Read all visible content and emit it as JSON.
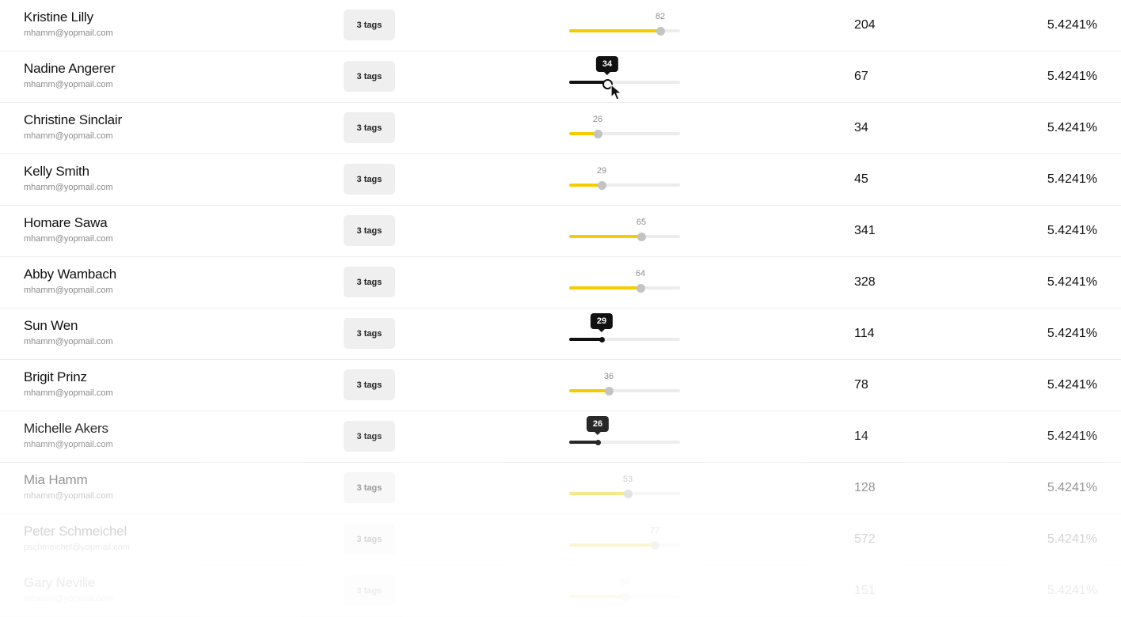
{
  "rows": [
    {
      "name": "Kristine Lilly",
      "email": "mhamm@yopmail.com",
      "tags": "3 tags",
      "level": 82,
      "count": "204",
      "percent": "5.4241%",
      "state": "normal",
      "opacity": 1
    },
    {
      "name": "Nadine Angerer",
      "email": "mhamm@yopmail.com",
      "tags": "3 tags",
      "level": 34,
      "count": "67",
      "percent": "5.4241%",
      "state": "active",
      "opacity": 1
    },
    {
      "name": "Christine Sinclair",
      "email": "mhamm@yopmail.com",
      "tags": "3 tags",
      "level": 26,
      "count": "34",
      "percent": "5.4241%",
      "state": "normal",
      "opacity": 1
    },
    {
      "name": "Kelly Smith",
      "email": "mhamm@yopmail.com",
      "tags": "3 tags",
      "level": 29,
      "count": "45",
      "percent": "5.4241%",
      "state": "normal",
      "opacity": 1
    },
    {
      "name": "Homare Sawa",
      "email": "mhamm@yopmail.com",
      "tags": "3 tags",
      "level": 65,
      "count": "341",
      "percent": "5.4241%",
      "state": "normal",
      "opacity": 1
    },
    {
      "name": "Abby Wambach",
      "email": "mhamm@yopmail.com",
      "tags": "3 tags",
      "level": 64,
      "count": "328",
      "percent": "5.4241%",
      "state": "normal",
      "opacity": 1
    },
    {
      "name": "Sun Wen",
      "email": "mhamm@yopmail.com",
      "tags": "3 tags",
      "level": 29,
      "count": "114",
      "percent": "5.4241%",
      "state": "dark",
      "opacity": 1
    },
    {
      "name": "Brigit Prinz",
      "email": "mhamm@yopmail.com",
      "tags": "3 tags",
      "level": 36,
      "count": "78",
      "percent": "5.4241%",
      "state": "normal",
      "opacity": 1
    },
    {
      "name": "Michelle Akers",
      "email": "mhamm@yopmail.com",
      "tags": "3 tags",
      "level": 26,
      "count": "14",
      "percent": "5.4241%",
      "state": "dark",
      "opacity": 0.9
    },
    {
      "name": "Mia Hamm",
      "email": "mhamm@yopmail.com",
      "tags": "3 tags",
      "level": 53,
      "count": "128",
      "percent": "5.4241%",
      "state": "normal",
      "opacity": 0.45
    },
    {
      "name": "Peter Schmeichel",
      "email": "pschmeichel@yopmail.com",
      "tags": "3 tags",
      "level": 77,
      "count": "572",
      "percent": "5.4241%",
      "state": "normal",
      "opacity": 0.18
    },
    {
      "name": "Gary Neville",
      "email": "mhamm@yopmail.com",
      "tags": "3 tags",
      "level": 50,
      "count": "151",
      "percent": "5.4241%",
      "state": "normal",
      "opacity": 0.08
    }
  ]
}
